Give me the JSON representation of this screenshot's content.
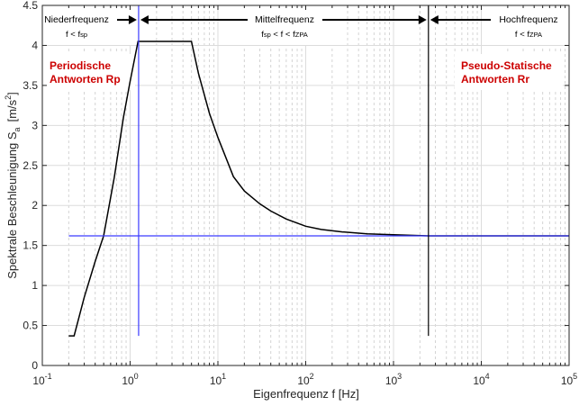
{
  "chart_data": {
    "type": "line",
    "xlabel": "Eigenfrequenz f [Hz]",
    "ylabel": "Spektrale Beschleunigung S",
    "ylabel_sub": "a",
    "ylabel_unit": "[m/s",
    "ylabel_unit_sup": "2",
    "ylabel_unit_end": "]",
    "x_scale": "log",
    "xlim": [
      0.1,
      100000
    ],
    "ylim": [
      0,
      4.5
    ],
    "x_ticks": [
      0.1,
      1,
      10,
      100,
      1000,
      10000,
      100000
    ],
    "x_tick_labels": [
      [
        "10",
        "-1"
      ],
      [
        "10",
        "0"
      ],
      [
        "10",
        "1"
      ],
      [
        "10",
        "2"
      ],
      [
        "10",
        "3"
      ],
      [
        "10",
        "4"
      ],
      [
        "10",
        "5"
      ]
    ],
    "y_ticks": [
      0,
      0.5,
      1,
      1.5,
      2,
      2.5,
      3,
      3.5,
      4,
      4.5
    ],
    "y_tick_labels": [
      "0",
      "0.5",
      "1",
      "1.5",
      "2",
      "2.5",
      "3",
      "3.5",
      "4",
      "4.5"
    ],
    "grid": true,
    "series": [
      {
        "color": "#000000",
        "x": [
          0.2,
          0.23,
          0.3,
          0.4,
          0.5,
          0.66,
          0.84,
          1.0,
          1.23,
          5.0,
          6,
          8,
          10,
          15,
          20,
          30,
          40,
          60,
          100,
          150,
          260,
          500,
          1000,
          2500,
          100000
        ],
        "y": [
          0.37,
          0.37,
          0.85,
          1.3,
          1.62,
          2.35,
          3.1,
          3.55,
          4.05,
          4.05,
          3.65,
          3.15,
          2.85,
          2.36,
          2.18,
          2.02,
          1.93,
          1.83,
          1.74,
          1.7,
          1.67,
          1.645,
          1.635,
          1.62,
          1.62
        ]
      },
      {
        "color": "#3a3aff",
        "x": [
          0.2,
          100000
        ],
        "y": [
          1.62,
          1.62
        ]
      }
    ],
    "vlines": [
      {
        "x": 1.25,
        "y": [
          0.37,
          4.5
        ],
        "color": "#3a3aff"
      },
      {
        "x": 2500,
        "y": [
          0.37,
          4.5
        ],
        "color": "#000000"
      }
    ],
    "annotations": {
      "regions": [
        {
          "title": "Niederfrequenz",
          "condition": [
            "f < f",
            "sp",
            "",
            ""
          ]
        },
        {
          "title": "Mittelfrequenz",
          "condition": [
            "f",
            "sp",
            " < f < f",
            "ZPA"
          ]
        },
        {
          "title": "Hochfrequenz",
          "condition": [
            "f < f",
            "ZPA",
            "",
            ""
          ]
        }
      ],
      "left_label": [
        "Periodische",
        "Antworten Rp"
      ],
      "right_label": [
        "Pseudo-Statische",
        "Antworten Rr"
      ],
      "label_color": "#cc0000"
    }
  }
}
